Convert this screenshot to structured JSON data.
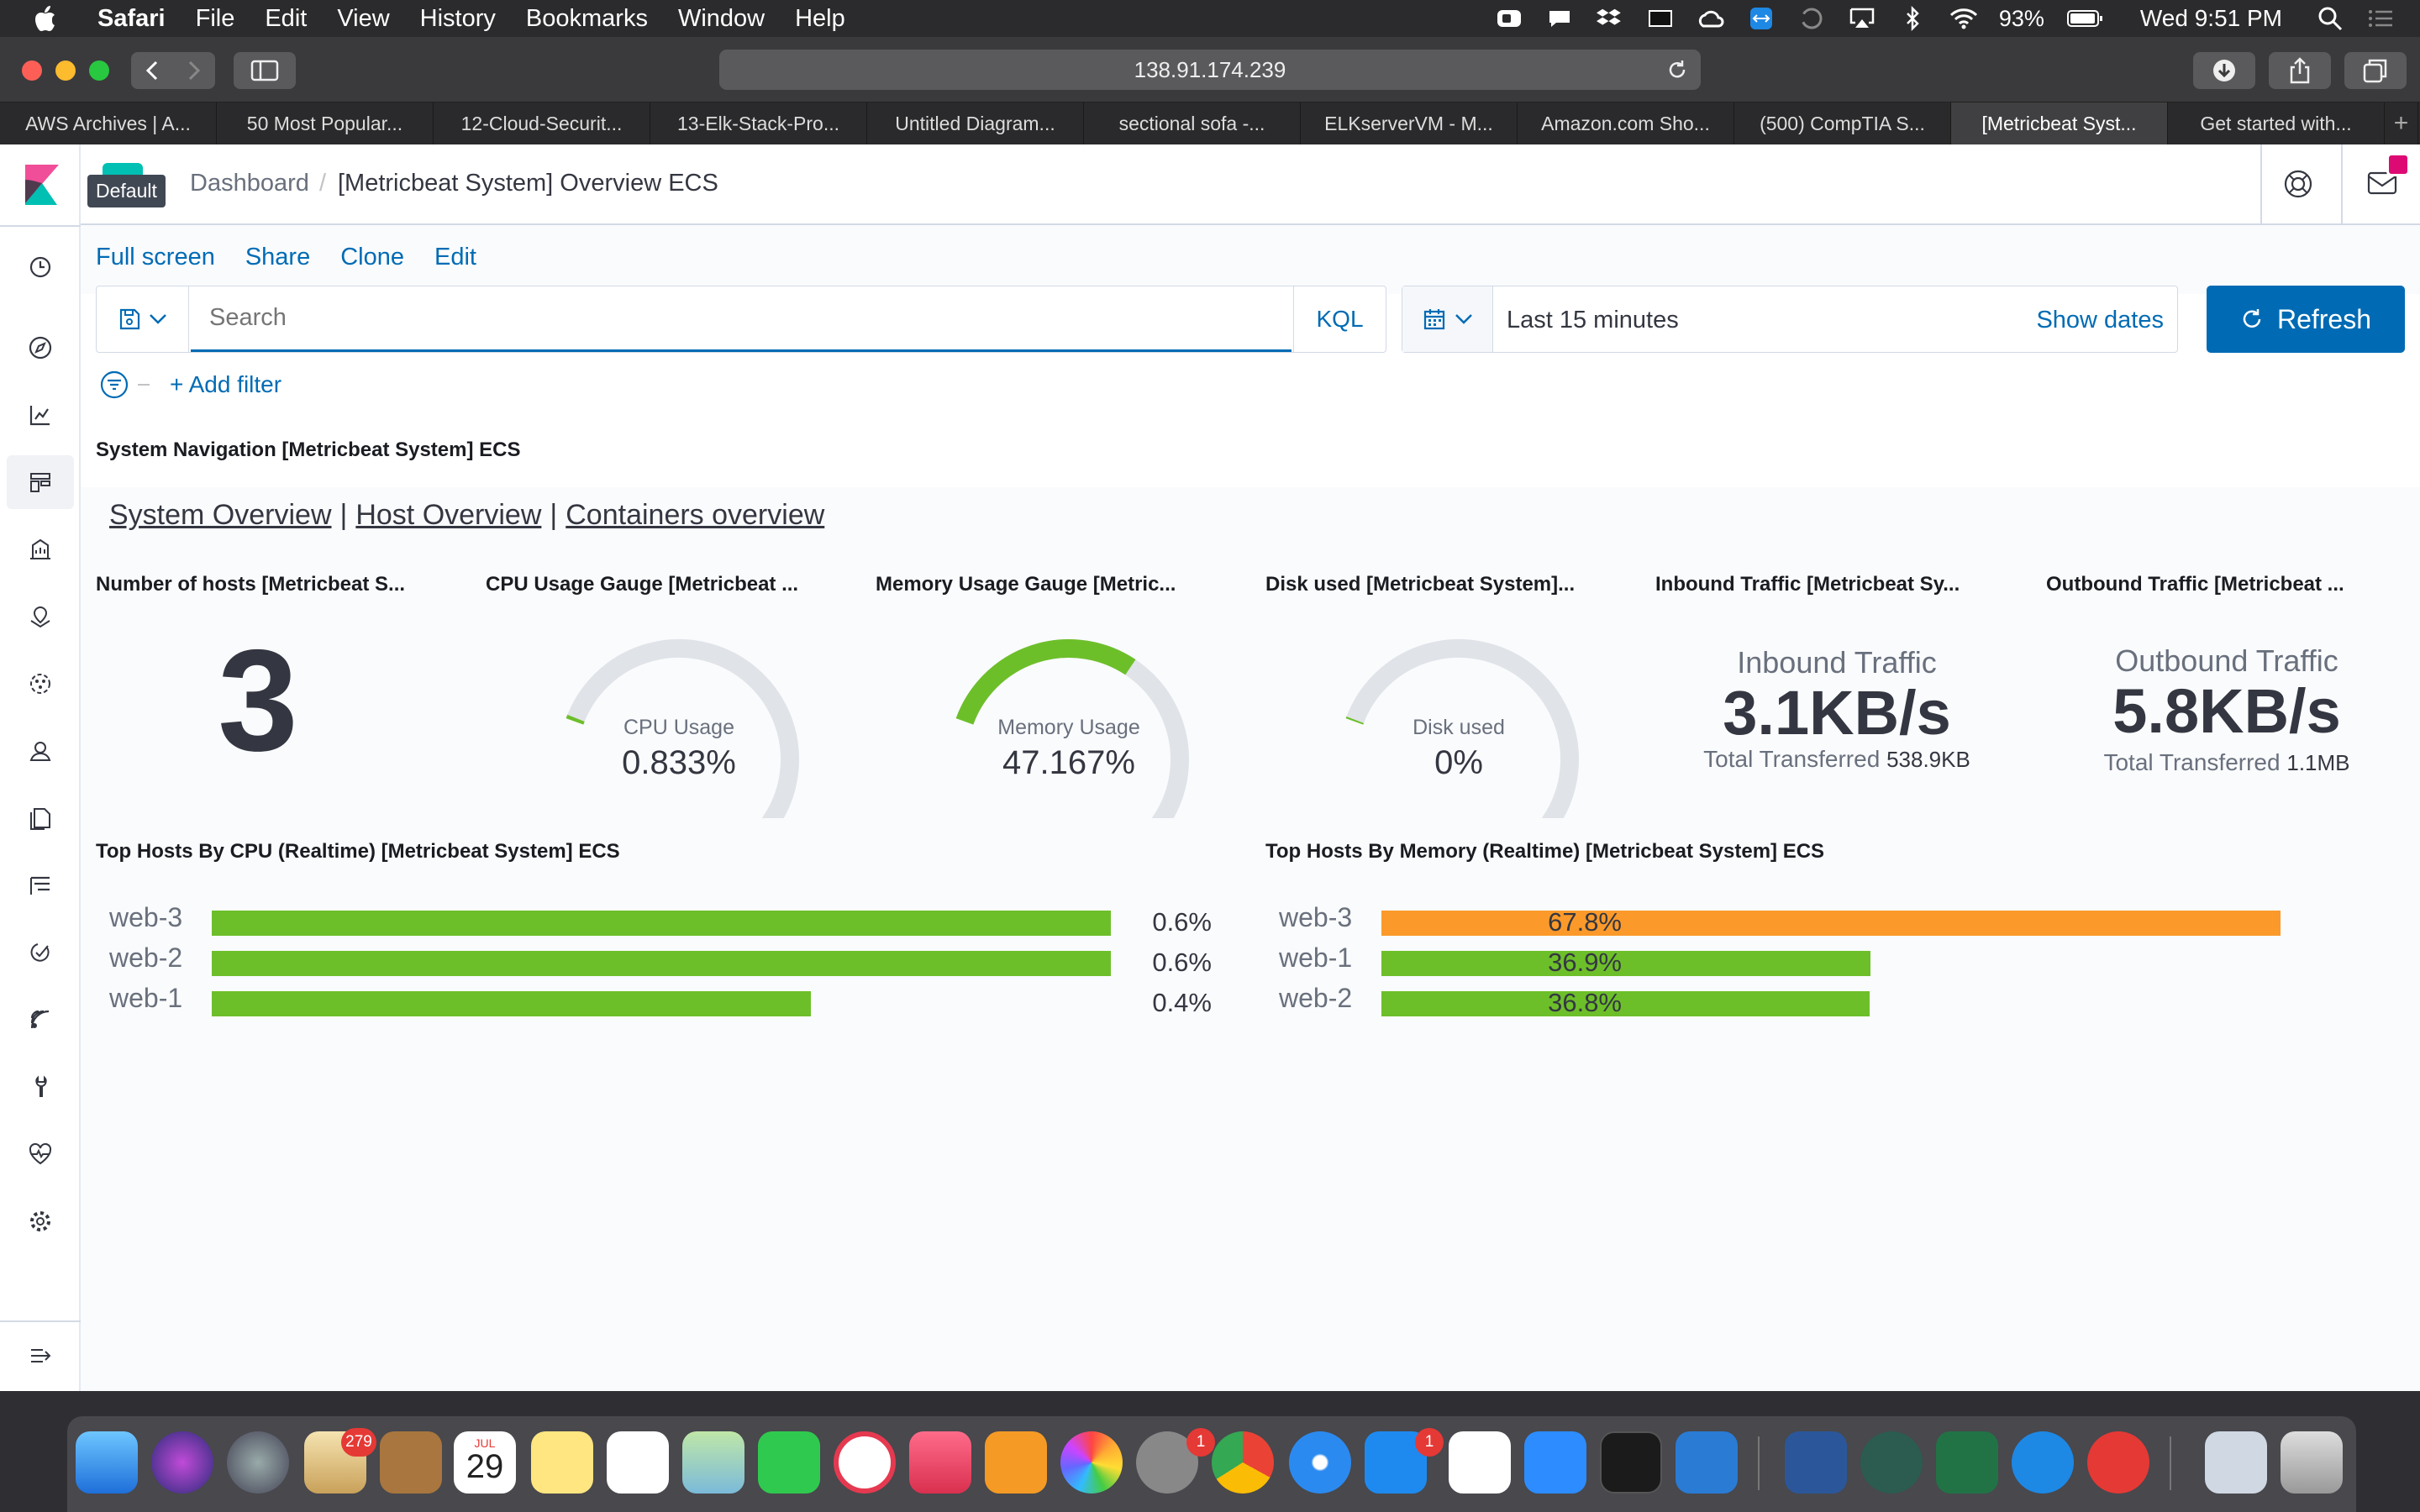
{
  "menubar": {
    "app": "Safari",
    "items": [
      "File",
      "Edit",
      "View",
      "History",
      "Bookmarks",
      "Window",
      "Help"
    ],
    "battery": "93%",
    "clock": "Wed 9:51 PM"
  },
  "browser": {
    "url": "138.91.174.239",
    "tabs": [
      "AWS Archives | A...",
      "50 Most Popular...",
      "12-Cloud-Securit...",
      "13-Elk-Stack-Pro...",
      "Untitled Diagram...",
      "sectional sofa -...",
      "ELKserverVM - M...",
      "Amazon.com Sho...",
      "(500) CompTIA S...",
      "[Metricbeat Syst...",
      "Get started with..."
    ],
    "active_tab_index": 9
  },
  "kibana": {
    "space_tooltip": "Default",
    "breadcrumb_root": "Dashboard",
    "breadcrumb_sep": "/",
    "breadcrumb_current": "[Metricbeat System] Overview ECS",
    "top_actions": [
      "Full screen",
      "Share",
      "Clone",
      "Edit"
    ],
    "search_placeholder": "Search",
    "query_language": "KQL",
    "time_range": "Last 15 minutes",
    "show_dates": "Show dates",
    "refresh": "Refresh",
    "add_filter": "+ Add filter"
  },
  "dashboard": {
    "nav_panel_title": "System Navigation [Metricbeat System] ECS",
    "nav_links": [
      "System Overview",
      "Host Overview",
      "Containers overview"
    ],
    "nav_sep": "|",
    "panels": {
      "hosts": {
        "title": "Number of hosts [Metricbeat S...",
        "value": "3"
      },
      "cpu": {
        "title": "CPU Usage Gauge [Metricbeat ...",
        "label": "CPU Usage",
        "value": "0.833%",
        "percent": 0.833,
        "color": "#6dbf2a"
      },
      "memory": {
        "title": "Memory Usage Gauge [Metric...",
        "label": "Memory Usage",
        "value": "47.167%",
        "percent": 47.167,
        "color": "#6dbf2a"
      },
      "disk": {
        "title": "Disk used [Metricbeat System]...",
        "label": "Disk used",
        "value": "0%",
        "percent": 0,
        "color": "#6dbf2a"
      },
      "inbound": {
        "title": "Inbound Traffic [Metricbeat Sy...",
        "label": "Inbound Traffic",
        "value": "3.1KB/s",
        "total_label": "Total Transferred",
        "total_value": "538.9KB"
      },
      "outbound": {
        "title": "Outbound Traffic [Metricbeat ...",
        "label": "Outbound Traffic",
        "value": "5.8KB/s",
        "total_label": "Total Transferred",
        "total_value": "1.1MB"
      }
    },
    "top_cpu": {
      "title": "Top Hosts By CPU (Realtime) [Metricbeat System] ECS",
      "rows": [
        {
          "host": "web-3",
          "label": "0.6%",
          "value": 0.6,
          "color": "#6dbf2a"
        },
        {
          "host": "web-2",
          "label": "0.6%",
          "value": 0.6,
          "color": "#6dbf2a"
        },
        {
          "host": "web-1",
          "label": "0.4%",
          "value": 0.4,
          "color": "#6dbf2a"
        }
      ]
    },
    "top_memory": {
      "title": "Top Hosts By Memory (Realtime) [Metricbeat System] ECS",
      "rows": [
        {
          "host": "web-3",
          "label": "67.8%",
          "value": 67.8,
          "color": "#fb9a2a"
        },
        {
          "host": "web-1",
          "label": "36.9%",
          "value": 36.9,
          "color": "#6dbf2a"
        },
        {
          "host": "web-2",
          "label": "36.8%",
          "value": 36.8,
          "color": "#6dbf2a"
        }
      ]
    }
  },
  "dock": {
    "badges": {
      "mail": "279",
      "calendar_month": "JUL",
      "calendar_day": "29",
      "sysprefs": "1",
      "appstore": "1"
    }
  }
}
